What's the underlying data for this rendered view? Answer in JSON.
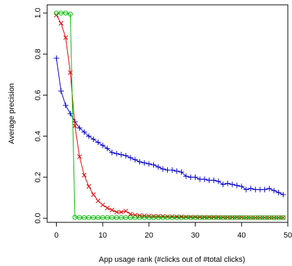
{
  "chart_data": {
    "type": "line",
    "title": "",
    "xlabel": "App usage rank (#clicks out of #total clicks)",
    "ylabel": "Average precision",
    "xlim": [
      -2,
      50
    ],
    "ylim": [
      -0.02,
      1.04
    ],
    "x_ticks": [
      0,
      10,
      20,
      30,
      40,
      50
    ],
    "y_ticks": [
      0.0,
      0.2,
      0.4,
      0.6,
      0.8,
      1.0
    ],
    "x_tick_labels": [
      "0",
      "10",
      "20",
      "30",
      "40",
      "50"
    ],
    "y_tick_labels": [
      "0.0",
      "0.2",
      "0.4",
      "0.6",
      "0.8",
      "1.0"
    ],
    "grid": false,
    "legend": "none",
    "x": [
      0,
      1,
      2,
      3,
      4,
      5,
      6,
      7,
      8,
      9,
      10,
      11,
      12,
      13,
      14,
      15,
      16,
      17,
      18,
      19,
      20,
      21,
      22,
      23,
      24,
      25,
      26,
      27,
      28,
      29,
      30,
      31,
      32,
      33,
      34,
      35,
      36,
      37,
      38,
      39,
      40,
      41,
      42,
      43,
      44,
      45,
      46,
      47,
      48,
      49
    ],
    "series": [
      {
        "color": "#0000cc",
        "marker": "plus",
        "values": [
          0.78,
          0.62,
          0.55,
          0.51,
          0.47,
          0.44,
          0.42,
          0.4,
          0.385,
          0.37,
          0.355,
          0.34,
          0.32,
          0.315,
          0.31,
          0.305,
          0.295,
          0.285,
          0.275,
          0.27,
          0.265,
          0.26,
          0.25,
          0.24,
          0.235,
          0.235,
          0.23,
          0.225,
          0.205,
          0.2,
          0.2,
          0.19,
          0.19,
          0.185,
          0.185,
          0.18,
          0.165,
          0.17,
          0.165,
          0.16,
          0.155,
          0.14,
          0.145,
          0.14,
          0.14,
          0.14,
          0.145,
          0.135,
          0.125,
          0.115
        ]
      },
      {
        "color": "#dd0000",
        "marker": "x",
        "values": [
          0.99,
          0.95,
          0.88,
          0.71,
          0.45,
          0.3,
          0.21,
          0.155,
          0.115,
          0.085,
          0.065,
          0.05,
          0.04,
          0.03,
          0.03,
          0.035,
          0.02,
          0.015,
          0.013,
          0.012,
          0.011,
          0.01,
          0.01,
          0.009,
          0.008,
          0.008,
          0.007,
          0.007,
          0.006,
          0.006,
          0.006,
          0.005,
          0.005,
          0.005,
          0.005,
          0.005,
          0.004,
          0.004,
          0.004,
          0.004,
          0.004,
          0.003,
          0.003,
          0.003,
          0.003,
          0.003,
          0.003,
          0.003,
          0.003,
          0.003
        ]
      },
      {
        "color": "#00bb00",
        "marker": "circle",
        "values": [
          1.0,
          1.0,
          1.0,
          0.995,
          0.005,
          0.003,
          0.003,
          0.003,
          0.003,
          0.003,
          0.003,
          0.003,
          0.003,
          0.003,
          0.003,
          0.003,
          0.003,
          0.003,
          0.003,
          0.003,
          0.003,
          0.003,
          0.003,
          0.003,
          0.003,
          0.003,
          0.003,
          0.003,
          0.003,
          0.003,
          0.003,
          0.003,
          0.003,
          0.003,
          0.003,
          0.003,
          0.003,
          0.003,
          0.003,
          0.003,
          0.003,
          0.003,
          0.003,
          0.003,
          0.003,
          0.003,
          0.003,
          0.003,
          0.003,
          0.003
        ]
      }
    ]
  }
}
